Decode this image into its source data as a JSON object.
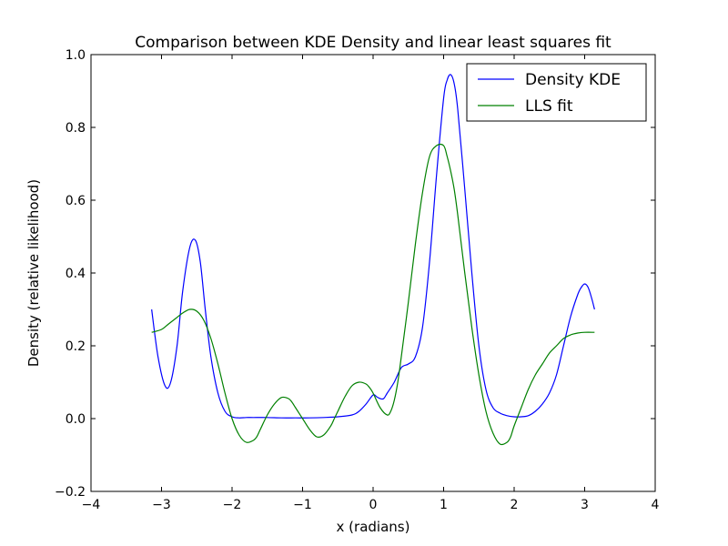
{
  "chart_data": {
    "type": "line",
    "title": "Comparison between KDE Density and linear least squares fit",
    "xlabel": "x (radians)",
    "ylabel": "Density (relative likelihood)",
    "xlim": [
      -4,
      4
    ],
    "ylim": [
      -0.2,
      1.0
    ],
    "xticks": [
      -4,
      -3,
      -2,
      -1,
      0,
      1,
      2,
      3,
      4
    ],
    "xtick_labels": [
      "−4",
      "−3",
      "−2",
      "−1",
      "0",
      "1",
      "2",
      "3",
      "4"
    ],
    "yticks": [
      -0.2,
      0.0,
      0.2,
      0.4,
      0.6,
      0.8,
      1.0
    ],
    "ytick_labels": [
      "−0.2",
      "0.0",
      "0.2",
      "0.4",
      "0.6",
      "0.8",
      "1.0"
    ],
    "grid": false,
    "legend_position": "top-right",
    "series": [
      {
        "name": "Density KDE",
        "color": "#0000ff",
        "x": [
          -3.14,
          -3.05,
          -2.95,
          -2.87,
          -2.78,
          -2.7,
          -2.6,
          -2.52,
          -2.45,
          -2.38,
          -2.3,
          -2.2,
          -2.1,
          -2.0,
          -1.9,
          -1.8,
          -1.7,
          -1.5,
          -1.3,
          -1.1,
          -0.9,
          -0.7,
          -0.5,
          -0.3,
          -0.2,
          -0.1,
          0.0,
          0.05,
          0.1,
          0.15,
          0.2,
          0.3,
          0.4,
          0.5,
          0.6,
          0.7,
          0.8,
          0.9,
          1.0,
          1.05,
          1.1,
          1.15,
          1.2,
          1.3,
          1.4,
          1.5,
          1.6,
          1.7,
          1.8,
          1.9,
          2.0,
          2.1,
          2.2,
          2.3,
          2.4,
          2.5,
          2.6,
          2.7,
          2.8,
          2.9,
          2.95,
          3.0,
          3.05,
          3.1,
          3.14
        ],
        "y": [
          0.3,
          0.17,
          0.09,
          0.1,
          0.2,
          0.35,
          0.47,
          0.49,
          0.43,
          0.3,
          0.17,
          0.07,
          0.02,
          0.005,
          0.002,
          0.003,
          0.003,
          0.003,
          0.002,
          0.002,
          0.002,
          0.003,
          0.005,
          0.01,
          0.02,
          0.04,
          0.065,
          0.06,
          0.055,
          0.055,
          0.07,
          0.1,
          0.14,
          0.15,
          0.17,
          0.25,
          0.43,
          0.67,
          0.88,
          0.93,
          0.945,
          0.92,
          0.85,
          0.63,
          0.4,
          0.2,
          0.08,
          0.03,
          0.015,
          0.008,
          0.005,
          0.005,
          0.008,
          0.02,
          0.04,
          0.07,
          0.12,
          0.2,
          0.28,
          0.34,
          0.36,
          0.37,
          0.36,
          0.33,
          0.3
        ]
      },
      {
        "name": "LLS fit",
        "color": "#008000",
        "x": [
          -3.14,
          -3.0,
          -2.9,
          -2.8,
          -2.7,
          -2.6,
          -2.5,
          -2.4,
          -2.3,
          -2.2,
          -2.1,
          -2.0,
          -1.9,
          -1.8,
          -1.7,
          -1.65,
          -1.6,
          -1.5,
          -1.4,
          -1.3,
          -1.2,
          -1.15,
          -1.1,
          -1.0,
          -0.9,
          -0.8,
          -0.7,
          -0.6,
          -0.55,
          -0.5,
          -0.4,
          -0.3,
          -0.2,
          -0.1,
          -0.05,
          0.0,
          0.1,
          0.2,
          0.25,
          0.3,
          0.35,
          0.4,
          0.5,
          0.6,
          0.7,
          0.8,
          0.9,
          1.0,
          1.05,
          1.1,
          1.15,
          1.2,
          1.3,
          1.4,
          1.5,
          1.6,
          1.7,
          1.8,
          1.9,
          1.95,
          2.0,
          2.1,
          2.2,
          2.3,
          2.4,
          2.5,
          2.6,
          2.7,
          2.8,
          2.9,
          3.0,
          3.14
        ],
        "y": [
          0.237,
          0.245,
          0.26,
          0.275,
          0.29,
          0.3,
          0.295,
          0.27,
          0.22,
          0.15,
          0.07,
          0.0,
          -0.045,
          -0.065,
          -0.06,
          -0.05,
          -0.03,
          0.01,
          0.04,
          0.058,
          0.055,
          0.045,
          0.03,
          0.0,
          -0.03,
          -0.05,
          -0.045,
          -0.02,
          0.0,
          0.02,
          0.06,
          0.09,
          0.1,
          0.095,
          0.085,
          0.07,
          0.03,
          0.01,
          0.02,
          0.05,
          0.1,
          0.17,
          0.32,
          0.48,
          0.62,
          0.72,
          0.75,
          0.75,
          0.72,
          0.68,
          0.63,
          0.56,
          0.4,
          0.25,
          0.12,
          0.02,
          -0.04,
          -0.07,
          -0.065,
          -0.05,
          -0.02,
          0.03,
          0.08,
          0.12,
          0.15,
          0.18,
          0.2,
          0.22,
          0.23,
          0.235,
          0.237,
          0.237
        ]
      }
    ]
  }
}
